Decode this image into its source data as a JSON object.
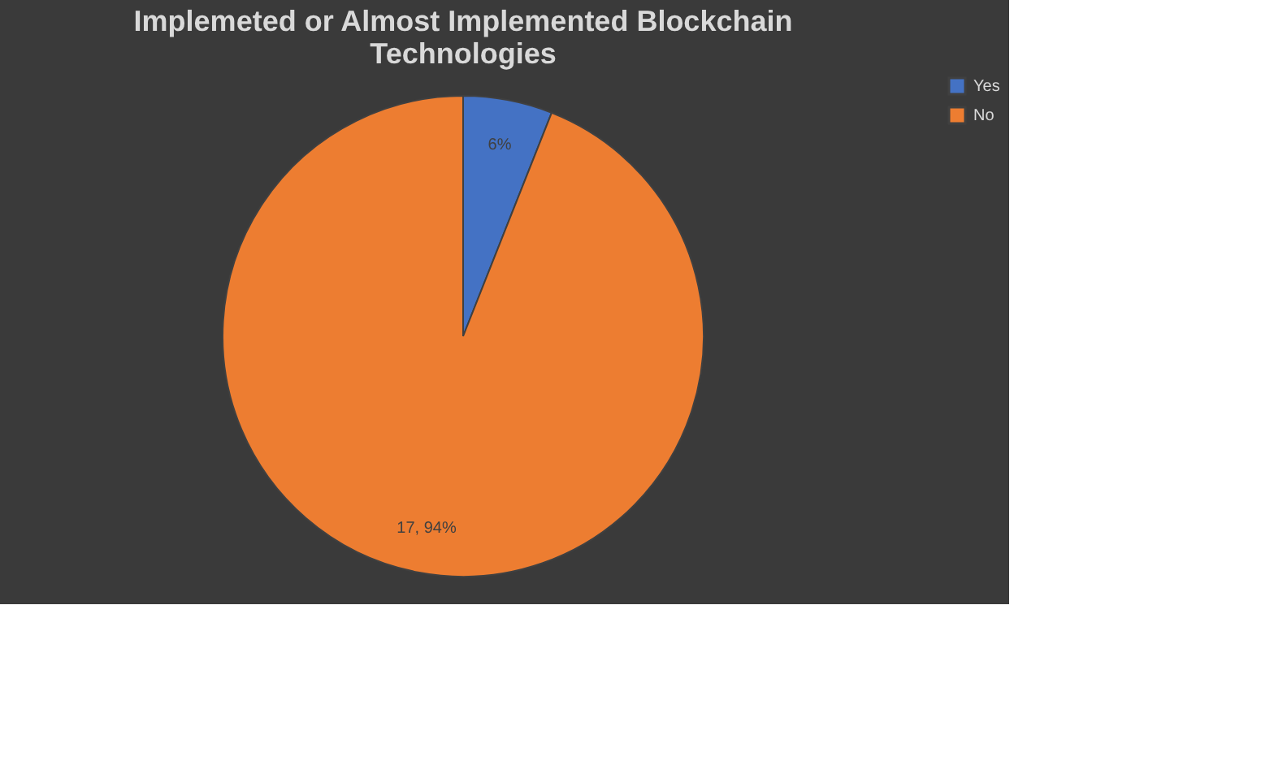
{
  "chart_data": {
    "type": "pie",
    "title": "Implemeted or Almost Implemented Blockchain Technologies",
    "categories": [
      "Yes",
      "No"
    ],
    "values": [
      6,
      94
    ],
    "colors": [
      "#4472c4",
      "#ed7d31"
    ],
    "value_labels": [
      "6%",
      "17, 94%"
    ],
    "legend": "right"
  }
}
